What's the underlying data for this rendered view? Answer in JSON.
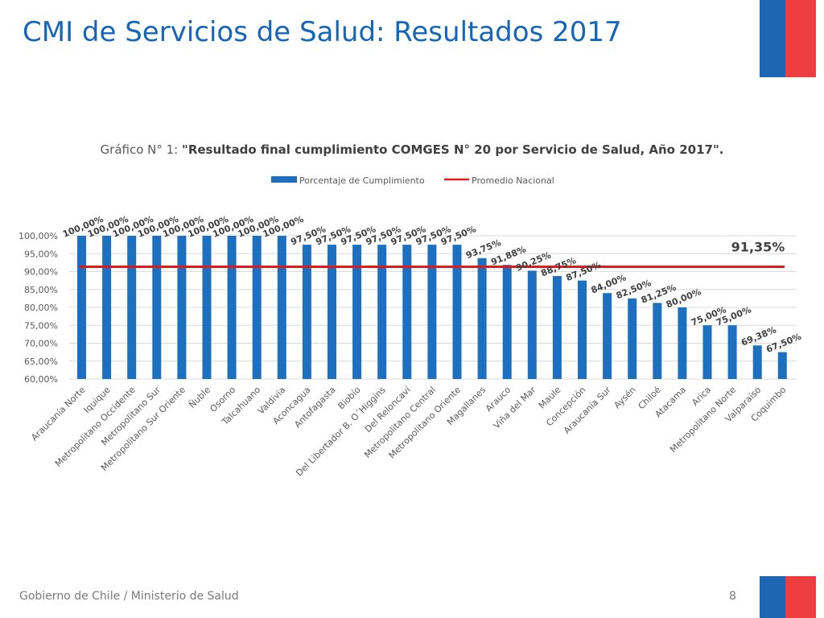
{
  "slide": {
    "title": "CMI de Servicios de Salud: Resultados 2017",
    "footer_text": "Gobierno de Chile / Ministerio de Salud",
    "page_number": "8"
  },
  "colors": {
    "bar": "#1d6fc0",
    "average_line": "#e01a1a",
    "title": "#1565b8",
    "flag_blue": "#1d66b4",
    "flag_red": "#ef3e42"
  },
  "chart_data": {
    "type": "bar",
    "title_prefix": "Gráfico N° 1: ",
    "title": "\"Resultado final cumplimiento COMGES N° 20 por Servicio de Salud, Año 2017\".",
    "legend": [
      "Porcentaje de Cumplimiento",
      "Promedio Nacional"
    ],
    "legend_position": "top",
    "categories": [
      "Araucanía Norte",
      "Iquique",
      "Metropolitano Occidente",
      "Metropolitano Sur",
      "Metropolitano Sur Oriente",
      "Ñuble",
      "Osorno",
      "Talcahuano",
      "Valdivia",
      "Aconcagua",
      "Antofagasta",
      "Biobío",
      "Del Libertador B. O´Higgins",
      "Del Reloncaví",
      "Metropolitano Central",
      "Metropolitano Oriente",
      "Magallanes",
      "Arauco",
      "Viña del Mar",
      "Maule",
      "Concepción",
      "Araucanía Sur",
      "Aysén",
      "Chiloé",
      "Atacama",
      "Arica",
      "Metropolitano Norte",
      "Valparaíso",
      "Coquimbo"
    ],
    "values": [
      100,
      100,
      100,
      100,
      100,
      100,
      100,
      100,
      100,
      97.5,
      97.5,
      97.5,
      97.5,
      97.5,
      97.5,
      97.5,
      93.75,
      91.88,
      90.25,
      88.75,
      87.5,
      84,
      82.5,
      81.25,
      80,
      75,
      75,
      69.38,
      67.5
    ],
    "value_labels": [
      "100,00%",
      "100,00%",
      "100,00%",
      "100,00%",
      "100,00%",
      "100,00%",
      "100,00%",
      "100,00%",
      "100,00%",
      "97,50%",
      "97,50%",
      "97,50%",
      "97,50%",
      "97,50%",
      "97,50%",
      "97,50%",
      "93,75%",
      "91,88%",
      "90,25%",
      "88,75%",
      "87,50%",
      "84,00%",
      "82,50%",
      "81,25%",
      "80,00%",
      "75,00%",
      "75,00%",
      "69,38%",
      "67,50%"
    ],
    "average": 91.35,
    "average_label": "91,35%",
    "ylim": [
      60,
      100
    ],
    "yticks": [
      60,
      65,
      70,
      75,
      80,
      85,
      90,
      95,
      100
    ],
    "ytick_labels": [
      "60,00%",
      "65,00%",
      "70,00%",
      "75,00%",
      "80,00%",
      "85,00%",
      "90,00%",
      "95,00%",
      "100,00%"
    ],
    "grid": true
  }
}
